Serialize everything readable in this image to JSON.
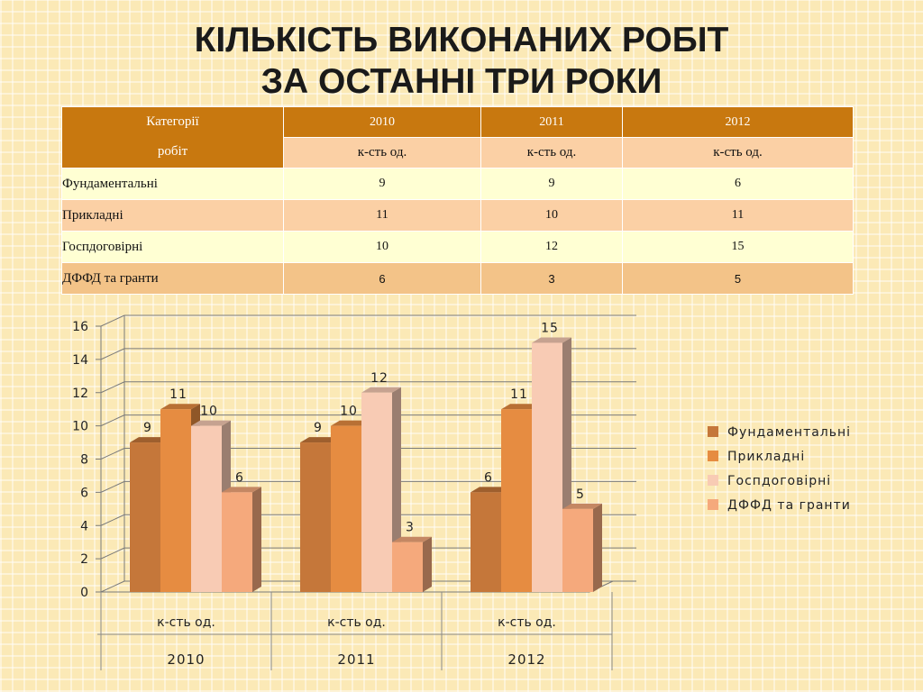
{
  "title": {
    "line1": "КІЛЬКІСТЬ ВИКОНАНИХ РОБІТ",
    "line2": "ЗА ОСТАННІ ТРИ РОКИ"
  },
  "table": {
    "header_category_line1": "Категорії",
    "header_category_line2": "робіт",
    "years": [
      "2010",
      "2011",
      "2012"
    ],
    "unit": "к-сть од.",
    "rows": [
      {
        "label": "Фундаментальні",
        "values": [
          "9",
          "9",
          "6"
        ]
      },
      {
        "label": "Прикладні",
        "values": [
          "11",
          "10",
          "11"
        ]
      },
      {
        "label": "Госпдоговірні",
        "values": [
          "10",
          "12",
          "15"
        ]
      },
      {
        "label": "ДФФД та гранти",
        "values": [
          "6",
          "3",
          "5"
        ]
      }
    ]
  },
  "chart_data": {
    "type": "bar",
    "categories": [
      "2010",
      "2011",
      "2012"
    ],
    "category_sublabel": "к-сть од.",
    "series": [
      {
        "name": "Фундаментальні",
        "values": [
          9,
          9,
          6
        ],
        "color": "#c5773a"
      },
      {
        "name": "Прикладні",
        "values": [
          11,
          10,
          11
        ],
        "color": "#e68c41"
      },
      {
        "name": "Госпдоговірні",
        "values": [
          10,
          12,
          15
        ],
        "color": "#f8cbb4"
      },
      {
        "name": "ДФФД та гранти",
        "values": [
          6,
          3,
          5
        ],
        "color": "#f5a97c"
      }
    ],
    "yticks": [
      0,
      2,
      4,
      6,
      8,
      10,
      12,
      14,
      16
    ],
    "ylim": [
      0,
      16
    ],
    "grid": true,
    "legend_position": "right",
    "style": "3d-clustered-column"
  }
}
